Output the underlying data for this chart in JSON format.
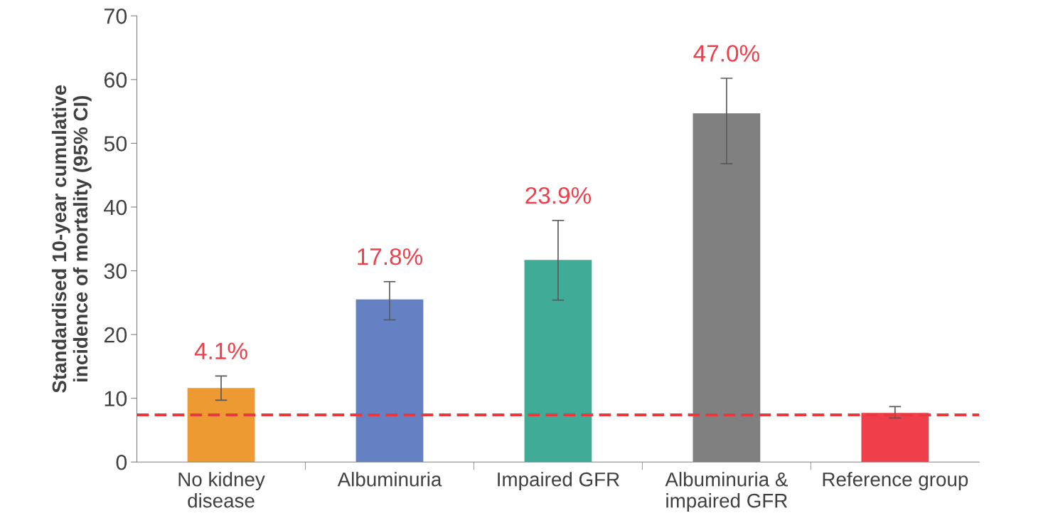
{
  "chart_data": {
    "type": "bar",
    "ylabel": "Standardised 10-year cumulative\nincidence of mortality (95% CI)",
    "categories": [
      "No kidney\ndisease",
      "Albuminuria",
      "Impaired GFR",
      "Albuminuria &\nimpaired GFR",
      "Reference group"
    ],
    "values": [
      11.6,
      25.5,
      31.7,
      54.7,
      7.7
    ],
    "colors": [
      "#ed9a33",
      "#6580c3",
      "#40ab97",
      "#808080",
      "#ee3f4a"
    ],
    "errors": [
      [
        9.7,
        13.5
      ],
      [
        22.3,
        28.3
      ],
      [
        25.4,
        37.9
      ],
      [
        46.8,
        60.2
      ],
      [
        6.9,
        8.7
      ]
    ],
    "ylim": [
      0,
      70
    ],
    "yticks": [
      0,
      10,
      20,
      30,
      40,
      50,
      60,
      70
    ],
    "ref_lines": [
      {
        "axis": "y",
        "value": 7.4,
        "color": "#e8393f",
        "line_style": "dashed"
      }
    ],
    "annotations": [
      {
        "text": "4.1%",
        "x": "No kidney\ndisease",
        "y": 13.5
      },
      {
        "text": "17.8%",
        "x": "Albuminuria",
        "y": 28.3
      },
      {
        "text": "23.9%",
        "x": "Impaired GFR",
        "y": 37.9
      },
      {
        "text": "47.0%",
        "x": "Albuminuria &\nimpaired GFR",
        "y": 60.2
      }
    ],
    "grid": false,
    "legend": false
  }
}
